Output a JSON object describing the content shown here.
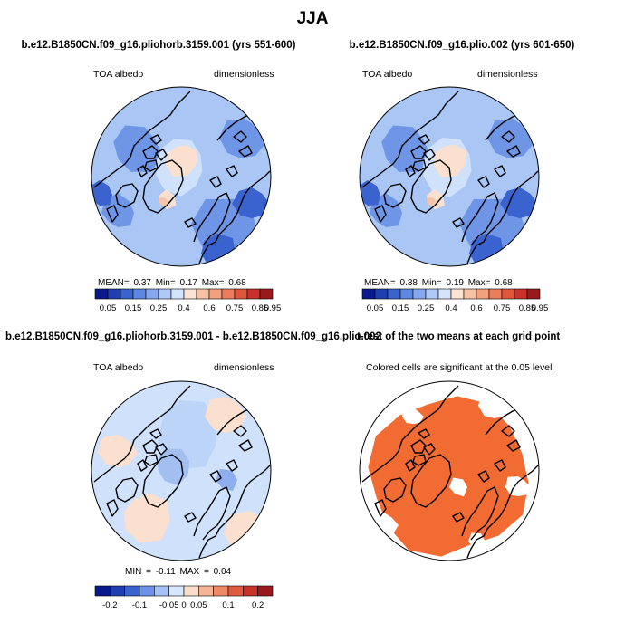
{
  "title": "JJA",
  "panels": [
    {
      "title": "b.e12.B1850CN.f09_g16.pliohorb.3159.001 (yrs 551-600)",
      "left_label": "TOA albedo",
      "right_label": "dimensionless",
      "stats": "MEAN=  0.37  Min=  0.17  Max=  0.68"
    },
    {
      "title": "b.e12.B1850CN.f09_g16.plio.002 (yrs 601-650)",
      "left_label": "TOA albedo",
      "right_label": "dimensionless",
      "stats": "MEAN=  0.38  Min=  0.19  Max=  0.68"
    },
    {
      "title": "b.e12.B1850CN.f09_g16.pliohorb.3159.001 - b.e12.B1850CN.f09_g16.plio.002",
      "left_label": "TOA albedo",
      "right_label": "dimensionless",
      "stats": "MIN =  -0.11  MAX =  0.04"
    },
    {
      "title": "t-test of the two means at each grid point",
      "subtitle": "Colored cells are significant at the 0.05 level"
    }
  ],
  "chart_data": [
    {
      "type": "heatmap",
      "title": "b.e12.B1850CN.f09_g16.pliohorb.3159.001 (yrs 551-600)",
      "variable": "TOA albedo",
      "units": "dimensionless",
      "projection": "north polar stereographic",
      "stats": {
        "mean": 0.37,
        "min": 0.17,
        "max": 0.68
      },
      "colorbar_levels": [
        0.05,
        0.1,
        0.15,
        0.2,
        0.25,
        0.3,
        0.4,
        0.5,
        0.6,
        0.7,
        0.75,
        0.8,
        0.85,
        0.9,
        0.95
      ],
      "colorbar_tick_labels": [
        "0.05",
        "0.15",
        "0.25",
        "0.4",
        "0.6",
        "0.75",
        "0.85",
        "0.95"
      ]
    },
    {
      "type": "heatmap",
      "title": "b.e12.B1850CN.f09_g16.plio.002 (yrs 601-650)",
      "variable": "TOA albedo",
      "units": "dimensionless",
      "projection": "north polar stereographic",
      "stats": {
        "mean": 0.38,
        "min": 0.19,
        "max": 0.68
      },
      "colorbar_levels": [
        0.05,
        0.1,
        0.15,
        0.2,
        0.25,
        0.3,
        0.4,
        0.5,
        0.6,
        0.7,
        0.75,
        0.8,
        0.85,
        0.9,
        0.95
      ],
      "colorbar_tick_labels": [
        "0.05",
        "0.15",
        "0.25",
        "0.4",
        "0.6",
        "0.75",
        "0.85",
        "0.95"
      ]
    },
    {
      "type": "heatmap",
      "title": "b.e12.B1850CN.f09_g16.pliohorb.3159.001 - b.e12.B1850CN.f09_g16.plio.002",
      "variable": "TOA albedo",
      "units": "dimensionless",
      "projection": "north polar stereographic",
      "stats": {
        "min": -0.11,
        "max": 0.04
      },
      "colorbar_levels": [
        -0.2,
        -0.15,
        -0.1,
        -0.075,
        -0.05,
        -0.025,
        0,
        0.025,
        0.05,
        0.075,
        0.1,
        0.15,
        0.2
      ],
      "colorbar_tick_labels": [
        "-0.2",
        "-0.1",
        "-0.05",
        "0",
        "0.05",
        "0.1",
        "0.2"
      ]
    },
    {
      "type": "heatmap",
      "title": "t-test of the two means at each grid point",
      "subtitle": "Colored cells are significant at the 0.05 level",
      "projection": "north polar stereographic",
      "significant_color": "#f26b33"
    }
  ],
  "colors": {
    "seq_bar": [
      "#0a1a8c",
      "#1f3fb0",
      "#3a64cc",
      "#5f86e0",
      "#86a8ef",
      "#aec8f8",
      "#d4e4fc",
      "#fbe2d2",
      "#f7c2a4",
      "#f3a07e",
      "#ec7d5c",
      "#e0563d",
      "#c8322a",
      "#981a1c"
    ],
    "diff_bar": [
      "#0a1a8c",
      "#1f3fb0",
      "#3a64cc",
      "#6d93e8",
      "#a4c2f6",
      "#d6e6fd",
      "#f9ddcb",
      "#f3b596",
      "#ec8966",
      "#e05a3e",
      "#c8322a",
      "#981a1c"
    ],
    "significant": "#f26b33",
    "coast": "#000000"
  }
}
